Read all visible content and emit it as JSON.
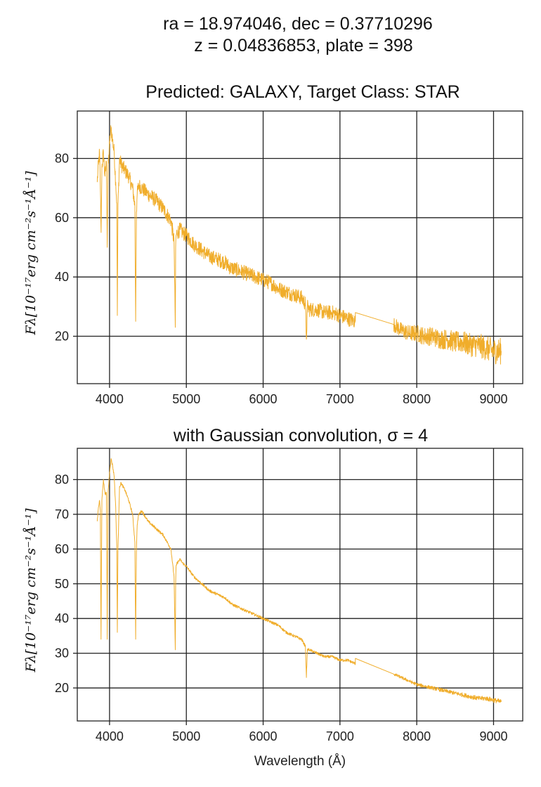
{
  "header": {
    "line1": "ra = 18.974046, dec = 0.37710296",
    "line2": "z = 0.04836853, plate = 398"
  },
  "colors": {
    "spectrum": "#f0ad2b"
  },
  "chart_data": [
    {
      "type": "line",
      "title": "Predicted: GALAXY, Target Class: STAR",
      "xlabel": "",
      "ylabel": "Fλ[10⁻¹⁷erg cm⁻²s⁻¹Å⁻¹]",
      "xlim": [
        3580,
        9380
      ],
      "ylim": [
        4,
        96
      ],
      "xticks": [
        4000,
        5000,
        6000,
        7000,
        8000,
        9000
      ],
      "yticks": [
        20,
        40,
        60,
        80
      ],
      "grid": true,
      "noise": 2.5,
      "series": [
        {
          "x": [
            3840,
            3855,
            3870,
            3880,
            3890,
            3900,
            3920,
            3940,
            3960,
            3970,
            3980,
            4000,
            4010,
            4020,
            4040,
            4060,
            4080,
            4095,
            4101,
            4110,
            4130,
            4150,
            4200,
            4250,
            4300,
            4330,
            4340,
            4350,
            4360,
            4380,
            4420,
            4500,
            4600,
            4700,
            4800,
            4840,
            4856,
            4861,
            4866,
            4880,
            4920,
            4950,
            5000,
            5100,
            5200,
            5300,
            5400,
            5500,
            5577,
            5600,
            5700,
            5800,
            5900,
            6000,
            6100,
            6200,
            6300,
            6400,
            6500,
            6550,
            6563,
            6576,
            6600,
            6700,
            6800,
            6900,
            7000,
            7100,
            7200,
            7201,
            7700,
            7800,
            7900,
            8000,
            8100,
            8200,
            8300,
            8400,
            8500,
            8600,
            8700,
            8800,
            8900,
            9000,
            9100
          ],
          "y": [
            72,
            78,
            82,
            70,
            55,
            77,
            82,
            74,
            79,
            50,
            76,
            85,
            88,
            90,
            86,
            82,
            72,
            65,
            27,
            64,
            80,
            78,
            76,
            74,
            70,
            64,
            25,
            62,
            68,
            71,
            70,
            68,
            66,
            63,
            59,
            52,
            23,
            50,
            54,
            55,
            56,
            55,
            54,
            51,
            49,
            47,
            46,
            45,
            43,
            43,
            42,
            41,
            40,
            39,
            38,
            36,
            35,
            34,
            33,
            31,
            19,
            30,
            29,
            29,
            28,
            28,
            27,
            26,
            25,
            28,
            24,
            22,
            21,
            21,
            20,
            20,
            19,
            19,
            18,
            18,
            17,
            17,
            16,
            15,
            15
          ]
        }
      ]
    },
    {
      "type": "line",
      "title": "with Gaussian convolution, σ = 4",
      "xlabel": "Wavelength (Å)",
      "ylabel": "Fλ[10⁻¹⁷erg cm⁻²s⁻¹Å⁻¹]",
      "xlim": [
        3580,
        9380
      ],
      "ylim": [
        10.5,
        89
      ],
      "xticks": [
        4000,
        5000,
        6000,
        7000,
        8000,
        9000
      ],
      "yticks": [
        20,
        30,
        40,
        50,
        60,
        70,
        80
      ],
      "grid": true,
      "noise": 0.4,
      "series": [
        {
          "x": [
            3840,
            3855,
            3870,
            3880,
            3889,
            3900,
            3920,
            3940,
            3960,
            3970,
            3980,
            4000,
            4010,
            4020,
            4040,
            4060,
            4080,
            4095,
            4101,
            4110,
            4130,
            4150,
            4200,
            4250,
            4300,
            4330,
            4340,
            4350,
            4360,
            4380,
            4420,
            4500,
            4600,
            4700,
            4800,
            4840,
            4856,
            4861,
            4866,
            4880,
            4920,
            4950,
            5000,
            5100,
            5200,
            5300,
            5400,
            5500,
            5600,
            5700,
            5800,
            5900,
            6000,
            6100,
            6200,
            6300,
            6400,
            6500,
            6550,
            6563,
            6576,
            6600,
            6700,
            6800,
            6900,
            7000,
            7100,
            7200,
            7201,
            7700,
            7800,
            7900,
            8000,
            8100,
            8200,
            8300,
            8400,
            8500,
            8600,
            8700,
            8800,
            8900,
            9000,
            9100
          ],
          "y": [
            68,
            72,
            74,
            71,
            34,
            74,
            80,
            76,
            76,
            34,
            76,
            82,
            84,
            86,
            84,
            81,
            72,
            60,
            36,
            60,
            78,
            79,
            77,
            74,
            70,
            62,
            34,
            60,
            67,
            70,
            71,
            68,
            66,
            64,
            60,
            52,
            31,
            50,
            55,
            56,
            57,
            56,
            55,
            52,
            50,
            48,
            47,
            46,
            44,
            43,
            42,
            41,
            40,
            39,
            38,
            36,
            35,
            34,
            32,
            23,
            31,
            31,
            30,
            29,
            29,
            28,
            28,
            27,
            28.5,
            24,
            23,
            22,
            21,
            20.5,
            20,
            19.5,
            19,
            18.5,
            18,
            17.5,
            17,
            17,
            16.5,
            16
          ]
        }
      ]
    }
  ]
}
